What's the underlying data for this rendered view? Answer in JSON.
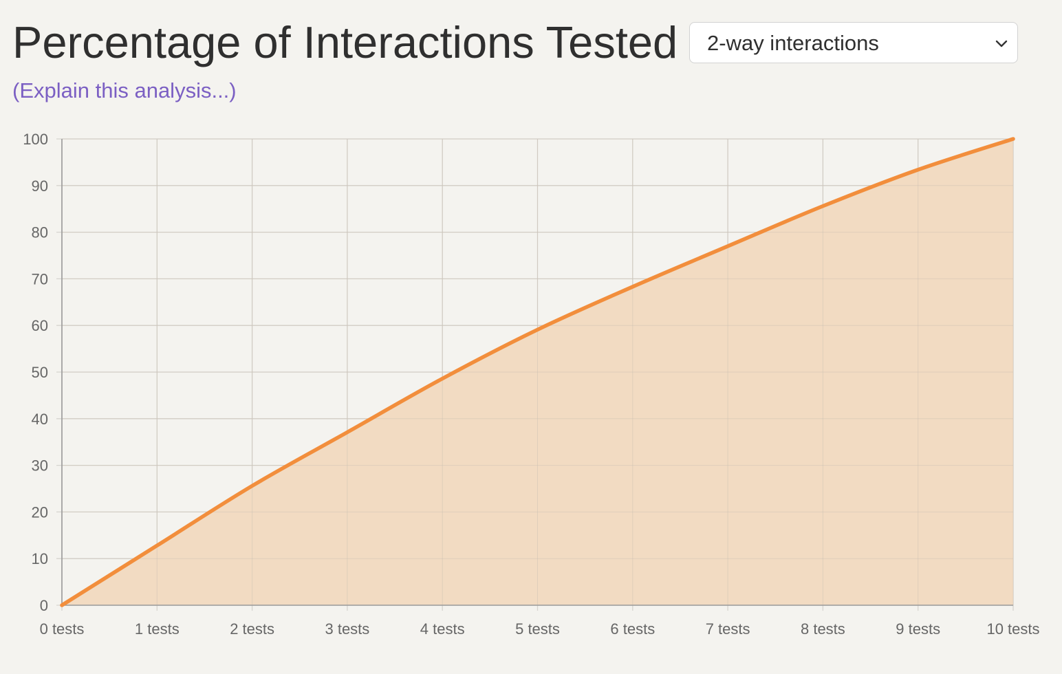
{
  "header": {
    "title": "Percentage of Interactions Tested",
    "explain_link": "(Explain this analysis...)"
  },
  "selector": {
    "selected": "2-way interactions",
    "icon": "chevron-down-icon"
  },
  "colors": {
    "background": "#f4f3ef",
    "line": "#f28e3c",
    "area": "#f2dbc2",
    "grid": "#d6d4cf",
    "axis": "#999999",
    "link": "#7b5fc3"
  },
  "chart_data": {
    "type": "area",
    "categories": [
      "0 tests",
      "1 tests",
      "2 tests",
      "3 tests",
      "4 tests",
      "5 tests",
      "6 tests",
      "7 tests",
      "8 tests",
      "9 tests",
      "10 tests"
    ],
    "x": [
      0,
      1,
      2,
      3,
      4,
      5,
      6,
      7,
      8,
      9,
      10
    ],
    "series": [
      {
        "values": [
          0,
          12.8,
          25.6,
          37.1,
          48.6,
          59.1,
          68.3,
          77.0,
          85.6,
          93.4,
          100
        ]
      }
    ],
    "y_ticks": [
      "0",
      "10",
      "20",
      "30",
      "40",
      "50",
      "60",
      "70",
      "80",
      "90",
      "100"
    ],
    "ylim": [
      0,
      100
    ],
    "xlim": [
      0,
      10
    ],
    "grid": true,
    "title": "",
    "xlabel": "",
    "ylabel": ""
  }
}
